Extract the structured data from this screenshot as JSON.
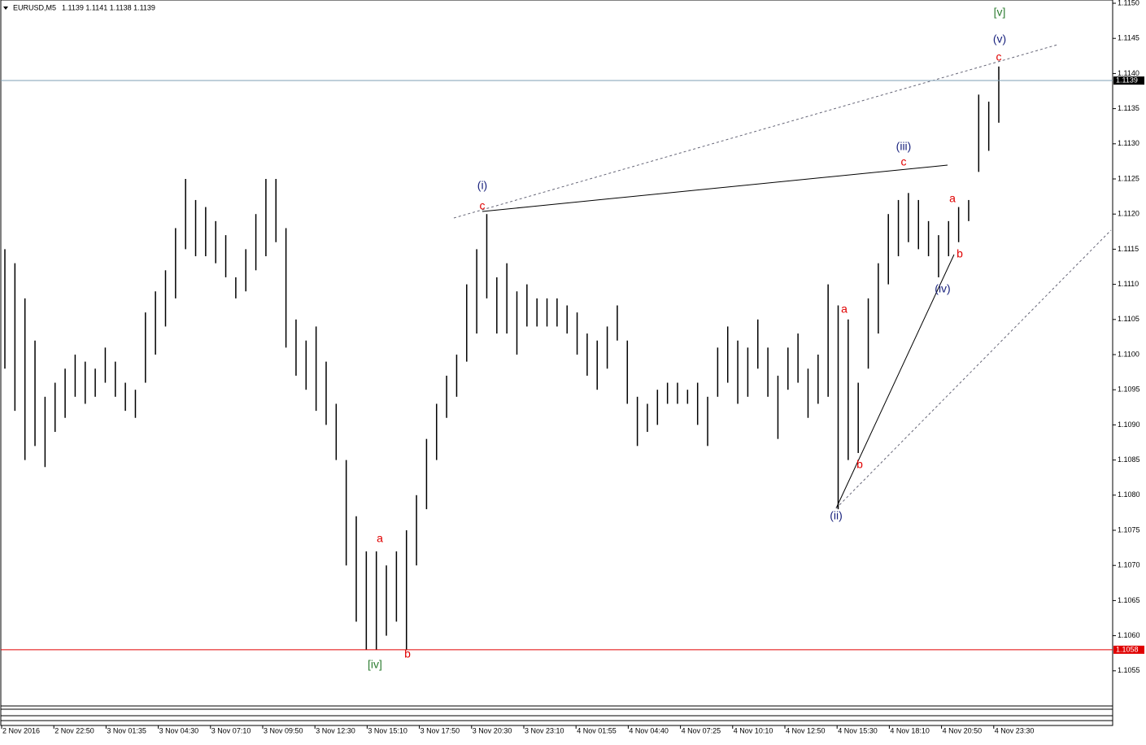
{
  "chart_data": {
    "type": "ohlc",
    "title": "EURUSD,M5",
    "subtitle": "1.1139 1.1141 1.1138 1.1139",
    "color": "#000000",
    "ylim": [
      1.105,
      1.115
    ],
    "yticks": [
      {
        "value": 1.115,
        "label": "1.1150"
      },
      1.1145,
      {
        "value": 1.114,
        "label": "1.1140"
      },
      1.1135,
      {
        "value": 1.113,
        "label": "1.1130"
      },
      1.1125,
      {
        "value": 1.112,
        "label": "1.1120"
      },
      1.1115,
      {
        "value": 1.111,
        "label": "1.1110"
      },
      1.1105,
      {
        "value": 1.11,
        "label": "1.1100"
      },
      1.1095,
      {
        "value": 1.109,
        "label": "1.1090"
      },
      1.1085,
      {
        "value": 1.108,
        "label": "1.1080"
      },
      1.1075,
      {
        "value": 1.107,
        "label": "1.1070"
      },
      1.1065,
      {
        "value": 1.106,
        "label": "1.1060"
      },
      1.1055
    ],
    "x_labels": [
      "2 Nov 2016",
      "2 Nov 22:50",
      "3 Nov 01:35",
      "3 Nov 04:30",
      "3 Nov 07:10",
      "3 Nov 09:50",
      "3 Nov 12:30",
      "3 Nov 15:10",
      "3 Nov 17:50",
      "3 Nov 20:30",
      "3 Nov 23:10",
      "4 Nov 01:55",
      "4 Nov 04:40",
      "4 Nov 07:25",
      "4 Nov 10:10",
      "4 Nov 12:50",
      "4 Nov 15:30",
      "4 Nov 18:10",
      "4 Nov 20:50",
      "4 Nov 23:30"
    ],
    "high": [
      1.1115,
      1.1113,
      1.1108,
      1.1102,
      1.1094,
      1.1096,
      1.1098,
      1.11,
      1.1099,
      1.1098,
      1.1101,
      1.1099,
      1.1096,
      1.1095,
      1.1106,
      1.1109,
      1.1112,
      1.1118,
      1.1125,
      1.1122,
      1.1121,
      1.1119,
      1.1117,
      1.1111,
      1.1115,
      1.112,
      1.1125,
      1.1125,
      1.1118,
      1.1105,
      1.1102,
      1.1104,
      1.1099,
      1.1093,
      1.1085,
      1.1077,
      1.1072,
      1.1072,
      1.107,
      1.1072,
      1.1075,
      1.108,
      1.1088,
      1.1093,
      1.1097,
      1.11,
      1.111,
      1.1115,
      1.112,
      1.1111,
      1.1113,
      1.1109,
      1.111,
      1.1108,
      1.1108,
      1.1108,
      1.1107,
      1.1106,
      1.1103,
      1.1102,
      1.1104,
      1.1107,
      1.1102,
      1.1094,
      1.1093,
      1.1095,
      1.1096,
      1.1096,
      1.1095,
      1.1096,
      1.1094,
      1.1101,
      1.1104,
      1.1102,
      1.1101,
      1.1105,
      1.1101,
      1.1097,
      1.1101,
      1.1103,
      1.1098,
      1.11,
      1.111,
      1.1107,
      1.1105,
      1.1096,
      1.1108,
      1.1113,
      1.112,
      1.1122,
      1.1123,
      1.1122,
      1.1119,
      1.1117,
      1.1119,
      1.1121,
      1.1122,
      1.1137,
      1.1136,
      1.1141
    ],
    "low": [
      1.1098,
      1.1092,
      1.1085,
      1.1087,
      1.1084,
      1.1089,
      1.1091,
      1.1094,
      1.1093,
      1.1094,
      1.1096,
      1.1094,
      1.1092,
      1.1091,
      1.1096,
      1.11,
      1.1104,
      1.1108,
      1.1115,
      1.1114,
      1.1114,
      1.1113,
      1.1111,
      1.1108,
      1.1109,
      1.1112,
      1.1114,
      1.1116,
      1.1101,
      1.1097,
      1.1095,
      1.1092,
      1.109,
      1.1085,
      1.107,
      1.1062,
      1.1058,
      1.1058,
      1.106,
      1.1062,
      1.1058,
      1.107,
      1.1078,
      1.1085,
      1.1091,
      1.1094,
      1.1099,
      1.1103,
      1.1108,
      1.1103,
      1.1103,
      1.11,
      1.1104,
      1.1104,
      1.1104,
      1.1104,
      1.1103,
      1.11,
      1.1097,
      1.1095,
      1.1098,
      1.1102,
      1.1093,
      1.1087,
      1.1089,
      1.109,
      1.1093,
      1.1093,
      1.1093,
      1.109,
      1.1087,
      1.1094,
      1.1096,
      1.1093,
      1.1094,
      1.1098,
      1.1094,
      1.1088,
      1.1095,
      1.1096,
      1.1091,
      1.1093,
      1.1094,
      1.1078,
      1.1085,
      1.1086,
      1.1098,
      1.1103,
      1.111,
      1.1114,
      1.1116,
      1.1115,
      1.1114,
      1.1111,
      1.1114,
      1.1116,
      1.1119,
      1.1126,
      1.1129,
      1.1133
    ],
    "price_lines": [
      {
        "value": 1.1139,
        "color": "#7f9fb4",
        "label_bg": "#000000"
      },
      {
        "value": 1.1058,
        "color": "#e00000",
        "label_bg": "#e00000"
      }
    ],
    "annotations": [
      {
        "text": "[v]",
        "color": "#2e7d32"
      },
      {
        "text": "(v)",
        "color": "#1a237e"
      },
      {
        "text": "c",
        "color": "#e00000"
      },
      {
        "text": "(iii)",
        "color": "#1a237e"
      },
      {
        "text": "c",
        "color": "#e00000"
      },
      {
        "text": "(i)",
        "color": "#1a237e"
      },
      {
        "text": "c",
        "color": "#e00000"
      },
      {
        "text": "a",
        "color": "#e00000"
      },
      {
        "text": "b",
        "color": "#e00000"
      },
      {
        "text": "(iv)",
        "color": "#1a237e"
      },
      {
        "text": "a",
        "color": "#e00000"
      },
      {
        "text": "b",
        "color": "#e00000"
      },
      {
        "text": "(ii)",
        "color": "#1a237e"
      },
      {
        "text": "a",
        "color": "#e00000"
      },
      {
        "text": "b",
        "color": "#e00000"
      },
      {
        "text": "[iv]",
        "color": "#2e7d32"
      }
    ]
  }
}
